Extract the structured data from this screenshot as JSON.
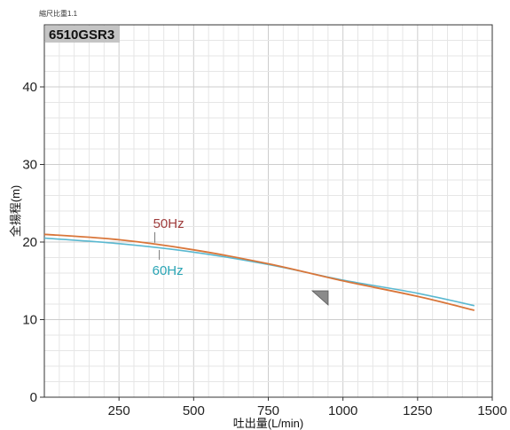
{
  "scale_note": "縮尺比重1.1",
  "model": "6510GSR3",
  "chart_data": {
    "type": "line",
    "xlabel": "吐出量(L/min)",
    "ylabel": "全揚程(m)",
    "xlim": [
      0,
      1500
    ],
    "ylim": [
      0,
      48
    ],
    "xticks": [
      250,
      500,
      750,
      1000,
      1250,
      1500
    ],
    "yticks": [
      0,
      10,
      20,
      30,
      40
    ],
    "grid": true,
    "series": [
      {
        "name": "50Hz",
        "color": "#9e3b3b",
        "line_color": "#d9763a",
        "x": [
          0,
          250,
          500,
          750,
          1000,
          1250,
          1440
        ],
        "y": [
          21.0,
          20.3,
          19.0,
          17.2,
          15.0,
          13.0,
          11.2
        ]
      },
      {
        "name": "60Hz",
        "color": "#2aa5b5",
        "line_color": "#5ab8d0",
        "x": [
          0,
          250,
          500,
          750,
          1000,
          1250,
          1440
        ],
        "y": [
          20.5,
          19.8,
          18.7,
          17.1,
          15.1,
          13.4,
          11.8
        ]
      }
    ]
  }
}
